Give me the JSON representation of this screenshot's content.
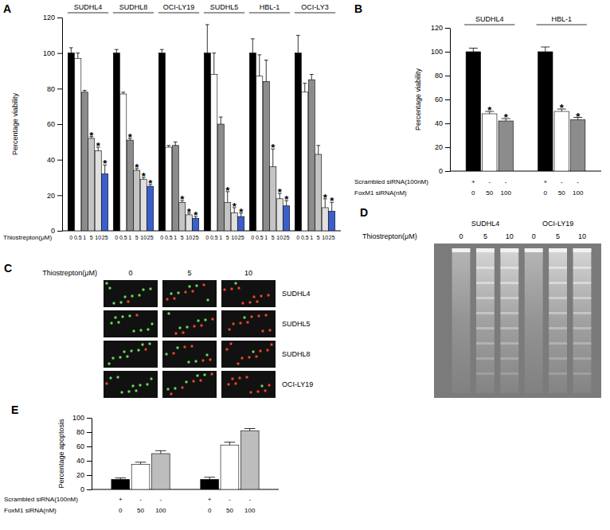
{
  "chart_data": [
    {
      "type": "bar",
      "title": "A",
      "y_label": "Percentage viability",
      "x_label": "Thiostrepton(μM)",
      "categories": [
        "SUDHL4",
        "SUDHL8",
        "OCI-LY19",
        "SUDHL5",
        "HBL-1",
        "OCI-LY3"
      ],
      "ylim": [
        0,
        120
      ],
      "yticks": [
        0,
        20,
        40,
        60,
        80,
        100,
        120
      ],
      "series": [
        {
          "name": "0",
          "color": "#000000",
          "values": [
            100,
            100,
            100,
            100,
            100,
            100
          ],
          "errors": [
            3,
            2,
            2,
            16,
            8,
            10
          ]
        },
        {
          "name": "0.5",
          "color": "#ffffff",
          "values": [
            97,
            77,
            47,
            88,
            87,
            78
          ],
          "errors": [
            3,
            1,
            1,
            12,
            12,
            5
          ]
        },
        {
          "name": "1",
          "color": "#8c8c8c",
          "values": [
            78,
            51,
            48,
            60,
            84,
            85
          ],
          "errors": [
            1,
            1,
            2,
            4,
            12,
            3
          ]
        },
        {
          "name": "5",
          "color": "#c4c4c4",
          "values": [
            52,
            34,
            16,
            16,
            36,
            43
          ],
          "errors": [
            1,
            1,
            1,
            6,
            10,
            5
          ]
        },
        {
          "name": "10",
          "color": "#e0e0e0",
          "values": [
            45,
            29,
            9,
            10,
            18,
            13
          ],
          "errors": [
            2,
            1,
            1,
            3,
            3,
            5
          ]
        },
        {
          "name": "25",
          "color": "#3a5fcd",
          "values": [
            32,
            25,
            7,
            8,
            14,
            11
          ],
          "errors": [
            5,
            1,
            1,
            2,
            3,
            5
          ]
        }
      ],
      "annotations": [
        {
          "text": "*",
          "category": 0,
          "series": 3
        },
        {
          "text": "*",
          "category": 0,
          "series": 4
        },
        {
          "text": "*",
          "category": 0,
          "series": 5
        },
        {
          "text": "*",
          "category": 1,
          "series": 2
        },
        {
          "text": "*",
          "category": 1,
          "series": 3
        },
        {
          "text": "*",
          "category": 1,
          "series": 4
        },
        {
          "text": "*",
          "category": 1,
          "series": 5
        },
        {
          "text": "*",
          "category": 2,
          "series": 3
        },
        {
          "text": "*",
          "category": 2,
          "series": 4
        },
        {
          "text": "*",
          "category": 2,
          "series": 5
        },
        {
          "text": "*",
          "category": 3,
          "series": 3
        },
        {
          "text": "*",
          "category": 3,
          "series": 4
        },
        {
          "text": "*",
          "category": 3,
          "series": 5
        },
        {
          "text": "*",
          "category": 4,
          "series": 3
        },
        {
          "text": "*",
          "category": 4,
          "series": 4
        },
        {
          "text": "*",
          "category": 4,
          "series": 5
        },
        {
          "text": "*",
          "category": 5,
          "series": 4
        },
        {
          "text": "*",
          "category": 5,
          "series": 5
        }
      ]
    },
    {
      "type": "bar",
      "title": "B",
      "y_label": "Percentage viability",
      "categories": [
        "SUDHL4",
        "HBL-1"
      ],
      "ylim": [
        0,
        120
      ],
      "yticks": [
        0,
        20,
        40,
        60,
        80,
        100,
        120
      ],
      "series": [
        {
          "color": "#000000",
          "values": [
            100,
            100
          ],
          "errors": [
            3,
            4
          ]
        },
        {
          "color": "#ffffff",
          "values": [
            48,
            50
          ],
          "errors": [
            2,
            2
          ]
        },
        {
          "color": "#8c8c8c",
          "values": [
            42,
            43
          ],
          "errors": [
            2,
            2
          ]
        }
      ],
      "annotations": [
        {
          "text": "*",
          "category": 0,
          "series": 1
        },
        {
          "text": "*",
          "category": 0,
          "series": 2
        },
        {
          "text": "*",
          "category": 1,
          "series": 1
        },
        {
          "text": "*",
          "category": 1,
          "series": 2
        }
      ],
      "conditions": [
        {
          "label": "Scrambled siRNA(100nM)",
          "values": [
            "+",
            "-",
            "-"
          ]
        },
        {
          "label": "FoxM1 siRNA(nM)",
          "values": [
            0,
            50,
            100
          ]
        }
      ]
    },
    {
      "type": "bar",
      "title": "E",
      "y_label": "Percentage apoptosis",
      "categories": [
        null,
        null
      ],
      "ylim": [
        0,
        100
      ],
      "yticks": [
        0,
        20,
        40,
        60,
        80,
        100
      ],
      "series": [
        {
          "color": "#000000",
          "values": [
            14,
            14
          ],
          "errors": [
            2,
            3
          ]
        },
        {
          "color": "#ffffff",
          "values": [
            35,
            62
          ],
          "errors": [
            3,
            4
          ]
        },
        {
          "color": "#bdbdbd",
          "values": [
            50,
            82
          ],
          "errors": [
            4,
            3
          ]
        }
      ],
      "conditions": [
        {
          "label": "Scrambled siRNA(100nM)",
          "values": [
            "+",
            "-",
            "-"
          ]
        },
        {
          "label": "FoxM1 siRNA(nM)",
          "values": [
            0,
            50,
            100
          ]
        }
      ]
    }
  ],
  "images": [
    {
      "type": "micrographs",
      "title": "C",
      "x_label": "Thiostrepton(μM)",
      "columns": [
        0,
        5,
        10
      ],
      "rows": [
        "SUDHL4",
        "SUDHL5",
        "SUDHL8",
        "OCI-LY19"
      ]
    },
    {
      "type": "gel",
      "title": "D",
      "x_label": "Thiostrepton(μM)",
      "groups": [
        "SUDHL4",
        "OCI-LY19"
      ],
      "lanes": [
        0,
        5,
        10
      ]
    }
  ]
}
